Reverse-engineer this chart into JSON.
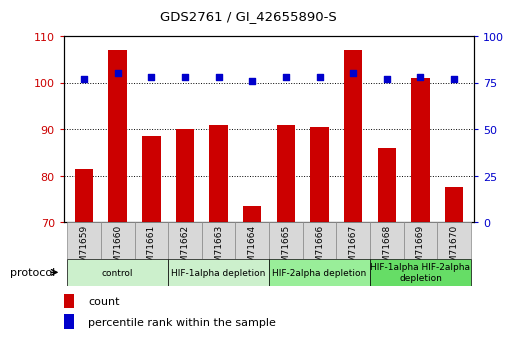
{
  "title": "GDS2761 / GI_42655890-S",
  "samples": [
    "GSM71659",
    "GSM71660",
    "GSM71661",
    "GSM71662",
    "GSM71663",
    "GSM71664",
    "GSM71665",
    "GSM71666",
    "GSM71667",
    "GSM71668",
    "GSM71669",
    "GSM71670"
  ],
  "counts": [
    81.5,
    107,
    88.5,
    90,
    91,
    73.5,
    91,
    90.5,
    107,
    86,
    101,
    77.5
  ],
  "percentile_ranks": [
    77,
    80,
    78,
    78,
    78,
    76,
    78,
    78,
    80,
    77,
    78,
    77
  ],
  "ylim_left": [
    70,
    110
  ],
  "ylim_right": [
    0,
    100
  ],
  "yticks_left": [
    70,
    80,
    90,
    100,
    110
  ],
  "yticks_right": [
    0,
    25,
    50,
    75,
    100
  ],
  "bar_color": "#cc0000",
  "scatter_color": "#0000cc",
  "bar_width": 0.55,
  "groups": [
    {
      "label": "control",
      "start": 0,
      "end": 3,
      "color": "#ccf0cc"
    },
    {
      "label": "HIF-1alpha depletion",
      "start": 3,
      "end": 6,
      "color": "#ccf0cc"
    },
    {
      "label": "HIF-2alpha depletion",
      "start": 6,
      "end": 9,
      "color": "#99ee99"
    },
    {
      "label": "HIF-1alpha HIF-2alpha\ndepletion",
      "start": 9,
      "end": 12,
      "color": "#66dd66"
    }
  ],
  "legend_count_label": "count",
  "legend_pct_label": "percentile rank within the sample",
  "protocol_label": "protocol",
  "tick_bg_color": "#d8d8d8",
  "tick_border_color": "#888888"
}
